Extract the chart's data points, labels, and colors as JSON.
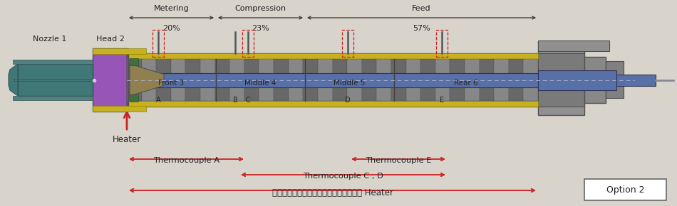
{
  "bg_color": "#d8d4cc",
  "title_box": "Option 2",
  "heater_label": "พื้นที่ให้ความร้อน Heater",
  "thermoCD_label": "Thermocouple C , D",
  "thermoA_label": "Thermocouple A",
  "thermoE_label": "Thermocouple E",
  "color_red": "#cc2222",
  "color_dark": "#222222",
  "color_bg": "#d8d4cc",
  "barrel_gray": "#878787",
  "barrel_dark": "#686868",
  "barrel_edge": "#505050",
  "heater_yellow": "#c8b020",
  "screw_blue": "#5870a8",
  "head_purple": "#9855b8",
  "nozzle_teal": "#407878",
  "cone_tan": "#908050",
  "end_gray": "#909090",
  "zone_labels": [
    "Front 3",
    "Middle 4",
    "Middle 5",
    "Rear 6"
  ],
  "nozzle_label": "Nozzle 1",
  "head_label": "Head 2",
  "heater_bottom_label": "Heater",
  "metering_label": "Metering",
  "metering_pct": "20%",
  "compression_label": "Compression",
  "compression_pct": "23%",
  "feed_label": "Feed",
  "feed_pct": "57%",
  "tc_labels": [
    "A",
    "B",
    "C",
    "D",
    "E"
  ],
  "tc_dashed": [
    true,
    false,
    true,
    true,
    true
  ]
}
